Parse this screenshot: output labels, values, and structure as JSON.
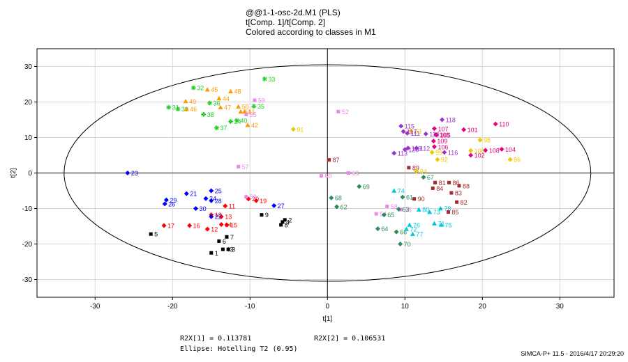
{
  "title": {
    "line1": "@@1-1-osc-2d.M1 (PLS)",
    "line2": "t[Comp. 1]/t[Comp. 2]",
    "line3": "Colored according to classes in M1"
  },
  "stats": {
    "r2x1": "R2X[1] = 0.113781",
    "r2x2": "R2X[2] = 0.106531",
    "ellipse": "Ellipse: Hotelling T2 (0.95)"
  },
  "footer": "SIMCA-P+ 11.5 - 2016/4/17 20:29:20",
  "chart_data": {
    "type": "scatter",
    "xlabel": "t[1]",
    "ylabel": "t[2]",
    "xlim": [
      -37.5,
      37
    ],
    "ylim": [
      -35,
      35
    ],
    "xticks": [
      -30,
      -20,
      -10,
      0,
      10,
      20,
      30
    ],
    "yticks": [
      -30,
      -20,
      -10,
      0,
      10,
      20,
      30
    ],
    "grid": true,
    "ellipse": {
      "cx": 0,
      "cy": 0,
      "rx": 34,
      "ry": 30.5
    },
    "colors": {
      "black": "#000000",
      "red": "#ff0000",
      "blue": "#0000ff",
      "green": "#22cc22",
      "orange": "#ff9900",
      "pink": "#ee88ee",
      "darkred": "#a52a2a",
      "darkgreen": "#2e8b57",
      "cyan": "#00c8d8",
      "purple": "#9933cc",
      "magenta": "#e6007e",
      "yellow": "#f0c800"
    },
    "points": [
      {
        "id": "1",
        "x": -15,
        "y": -22.5,
        "c": "black",
        "m": "square"
      },
      {
        "id": "2",
        "x": -5.5,
        "y": -13.2,
        "c": "black",
        "m": "square"
      },
      {
        "id": "3",
        "x": -12.8,
        "y": -21.5,
        "c": "black",
        "m": "square"
      },
      {
        "id": "4",
        "x": -5.8,
        "y": -13.8,
        "c": "black",
        "m": "square"
      },
      {
        "id": "5",
        "x": -22.8,
        "y": -17.2,
        "c": "black",
        "m": "square"
      },
      {
        "id": "6",
        "x": -14,
        "y": -19.2,
        "c": "black",
        "m": "square"
      },
      {
        "id": "7",
        "x": -13,
        "y": -18,
        "c": "black",
        "m": "square"
      },
      {
        "id": "8",
        "x": -6,
        "y": -14.6,
        "c": "black",
        "m": "square"
      },
      {
        "id": "9",
        "x": -8.5,
        "y": -11.8,
        "c": "black",
        "m": "square"
      },
      {
        "id": "43",
        "x": -13.5,
        "y": -21.5,
        "c": "black",
        "m": "square"
      },
      {
        "id": "11",
        "x": -13.2,
        "y": -9.3,
        "c": "red",
        "m": "diamond"
      },
      {
        "id": "12",
        "x": -15.5,
        "y": -15.8,
        "c": "red",
        "m": "diamond"
      },
      {
        "id": "13",
        "x": -13.7,
        "y": -12.3,
        "c": "red",
        "m": "diamond"
      },
      {
        "id": "14",
        "x": -13.7,
        "y": -14.5,
        "c": "red",
        "m": "diamond"
      },
      {
        "id": "15",
        "x": -13,
        "y": -14.6,
        "c": "red",
        "m": "diamond"
      },
      {
        "id": "16",
        "x": -17.8,
        "y": -14.8,
        "c": "red",
        "m": "diamond"
      },
      {
        "id": "17",
        "x": -21.1,
        "y": -14.8,
        "c": "red",
        "m": "diamond"
      },
      {
        "id": "18",
        "x": -15,
        "y": -11.8,
        "c": "red",
        "m": "diamond"
      },
      {
        "id": "19",
        "x": -9.2,
        "y": -7.8,
        "c": "red",
        "m": "diamond"
      },
      {
        "id": "20",
        "x": -10.2,
        "y": -7.3,
        "c": "red",
        "m": "diamond"
      },
      {
        "id": "21",
        "x": -18.2,
        "y": -5.8,
        "c": "blue",
        "m": "diamond"
      },
      {
        "id": "22",
        "x": -15,
        "y": -12.3,
        "c": "blue",
        "m": "diamond"
      },
      {
        "id": "23",
        "x": -25.8,
        "y": 0,
        "c": "blue",
        "m": "diamond"
      },
      {
        "id": "25",
        "x": -15,
        "y": -5,
        "c": "blue",
        "m": "diamond"
      },
      {
        "id": "26",
        "x": -21,
        "y": -8.7,
        "c": "blue",
        "m": "diamond"
      },
      {
        "id": "27",
        "x": -6.9,
        "y": -9.2,
        "c": "blue",
        "m": "diamond"
      },
      {
        "id": "28",
        "x": -15,
        "y": -7.8,
        "c": "blue",
        "m": "diamond"
      },
      {
        "id": "29",
        "x": -20.8,
        "y": -7.6,
        "c": "blue",
        "m": "diamond"
      },
      {
        "id": "30",
        "x": -17,
        "y": -10,
        "c": "blue",
        "m": "diamond"
      },
      {
        "id": "24",
        "x": -15.7,
        "y": -7.2,
        "c": "blue",
        "m": "diamond"
      },
      {
        "id": "31",
        "x": -20.5,
        "y": 18.5,
        "c": "green",
        "m": "star"
      },
      {
        "id": "32",
        "x": -17.3,
        "y": 24,
        "c": "green",
        "m": "star"
      },
      {
        "id": "33",
        "x": -8.1,
        "y": 26.5,
        "c": "green",
        "m": "star"
      },
      {
        "id": "34",
        "x": -12.5,
        "y": 14.5,
        "c": "green",
        "m": "star"
      },
      {
        "id": "35",
        "x": -9.5,
        "y": 18.8,
        "c": "green",
        "m": "star"
      },
      {
        "id": "36",
        "x": -15.2,
        "y": 19.7,
        "c": "green",
        "m": "star"
      },
      {
        "id": "37",
        "x": -14.3,
        "y": 12.7,
        "c": "green",
        "m": "star"
      },
      {
        "id": "38",
        "x": -16,
        "y": 16.5,
        "c": "green",
        "m": "star"
      },
      {
        "id": "39",
        "x": -19.3,
        "y": 18,
        "c": "green",
        "m": "star"
      },
      {
        "id": "40",
        "x": -11.7,
        "y": 14.8,
        "c": "green",
        "m": "star"
      },
      {
        "id": "41",
        "x": -10.7,
        "y": 17.3,
        "c": "orange",
        "m": "triangle"
      },
      {
        "id": "42",
        "x": -10.3,
        "y": 13.5,
        "c": "orange",
        "m": "triangle"
      },
      {
        "id": "44",
        "x": -14,
        "y": 21,
        "c": "orange",
        "m": "triangle"
      },
      {
        "id": "45",
        "x": -15.5,
        "y": 23.5,
        "c": "orange",
        "m": "triangle"
      },
      {
        "id": "46",
        "x": -18.2,
        "y": 18,
        "c": "orange",
        "m": "triangle"
      },
      {
        "id": "47",
        "x": -13.8,
        "y": 18.5,
        "c": "orange",
        "m": "triangle"
      },
      {
        "id": "48",
        "x": -12.5,
        "y": 23,
        "c": "orange",
        "m": "triangle"
      },
      {
        "id": "49",
        "x": -18.3,
        "y": 20.2,
        "c": "orange",
        "m": "triangle"
      },
      {
        "id": "50",
        "x": -11.5,
        "y": 18.7,
        "c": "orange",
        "m": "triangle"
      },
      {
        "id": "51",
        "x": -11.2,
        "y": 17.3,
        "c": "orange",
        "m": "triangle"
      },
      {
        "id": "52",
        "x": 1.4,
        "y": 17.3,
        "c": "pink",
        "m": "square"
      },
      {
        "id": "53",
        "x": -10.5,
        "y": -6.7,
        "c": "pink",
        "m": "square"
      },
      {
        "id": "54",
        "x": 6.3,
        "y": -11.5,
        "c": "pink",
        "m": "square"
      },
      {
        "id": "55",
        "x": -10.5,
        "y": 16.5,
        "c": "pink",
        "m": "square"
      },
      {
        "id": "56",
        "x": 9.5,
        "y": -10.3,
        "c": "pink",
        "m": "square"
      },
      {
        "id": "57",
        "x": -11.5,
        "y": 1.8,
        "c": "pink",
        "m": "square"
      },
      {
        "id": "58",
        "x": 7.7,
        "y": -9.4,
        "c": "pink",
        "m": "square"
      },
      {
        "id": "59",
        "x": -9.4,
        "y": 20.5,
        "c": "pink",
        "m": "square"
      },
      {
        "id": "60",
        "x": -0.8,
        "y": -0.8,
        "c": "pink",
        "m": "square"
      },
      {
        "id": "63",
        "x": 2.7,
        "y": 0,
        "c": "pink",
        "m": "square"
      },
      {
        "id": "61",
        "x": 9.7,
        "y": -6.8,
        "c": "darkgreen",
        "m": "diamond"
      },
      {
        "id": "62",
        "x": 1.2,
        "y": -9.5,
        "c": "darkgreen",
        "m": "diamond"
      },
      {
        "id": "64",
        "x": 6.5,
        "y": -15.7,
        "c": "darkgreen",
        "m": "diamond"
      },
      {
        "id": "65",
        "x": 7.3,
        "y": -11.8,
        "c": "darkgreen",
        "m": "diamond"
      },
      {
        "id": "66",
        "x": 8.9,
        "y": -16.6,
        "c": "darkgreen",
        "m": "diamond"
      },
      {
        "id": "67",
        "x": 12.4,
        "y": -1.2,
        "c": "darkgreen",
        "m": "diamond"
      },
      {
        "id": "68",
        "x": 0.5,
        "y": -7,
        "c": "darkgreen",
        "m": "diamond"
      },
      {
        "id": "69",
        "x": 4.1,
        "y": -3.8,
        "c": "darkgreen",
        "m": "diamond"
      },
      {
        "id": "70",
        "x": 9.4,
        "y": -20,
        "c": "darkgreen",
        "m": "diamond"
      },
      {
        "id": "63",
        "x": 9.2,
        "y": -10.2,
        "c": "darkgreen",
        "m": "diamond"
      },
      {
        "id": "71",
        "x": 13.8,
        "y": -14.2,
        "c": "cyan",
        "m": "triangle"
      },
      {
        "id": "72",
        "x": 10.2,
        "y": -15.8,
        "c": "cyan",
        "m": "triangle"
      },
      {
        "id": "73",
        "x": 13.2,
        "y": -11,
        "c": "cyan",
        "m": "triangle"
      },
      {
        "id": "74",
        "x": 8.6,
        "y": -5,
        "c": "cyan",
        "m": "triangle"
      },
      {
        "id": "75",
        "x": 14.7,
        "y": -14.6,
        "c": "cyan",
        "m": "triangle"
      },
      {
        "id": "76",
        "x": 10.6,
        "y": -14.6,
        "c": "cyan",
        "m": "triangle"
      },
      {
        "id": "77",
        "x": 11,
        "y": -17.2,
        "c": "cyan",
        "m": "triangle"
      },
      {
        "id": "78",
        "x": 14.6,
        "y": -10,
        "c": "cyan",
        "m": "triangle"
      },
      {
        "id": "80",
        "x": 11.8,
        "y": -10.3,
        "c": "cyan",
        "m": "triangle"
      },
      {
        "id": "81",
        "x": 13.9,
        "y": -2.7,
        "c": "darkred",
        "m": "square"
      },
      {
        "id": "82",
        "x": 16.7,
        "y": -8.2,
        "c": "darkred",
        "m": "square"
      },
      {
        "id": "83",
        "x": 16,
        "y": -5.6,
        "c": "darkred",
        "m": "square"
      },
      {
        "id": "84",
        "x": 13.6,
        "y": -4.3,
        "c": "darkred",
        "m": "square"
      },
      {
        "id": "85",
        "x": 15.6,
        "y": -11,
        "c": "darkred",
        "m": "square"
      },
      {
        "id": "86",
        "x": 15.7,
        "y": -2.7,
        "c": "darkred",
        "m": "square"
      },
      {
        "id": "87",
        "x": 0.2,
        "y": 3.7,
        "c": "darkred",
        "m": "square"
      },
      {
        "id": "88",
        "x": 17,
        "y": -3.6,
        "c": "darkred",
        "m": "square"
      },
      {
        "id": "89",
        "x": 10.5,
        "y": 1.5,
        "c": "darkred",
        "m": "square"
      },
      {
        "id": "90",
        "x": 11.2,
        "y": -7.3,
        "c": "darkred",
        "m": "square"
      },
      {
        "id": "91",
        "x": -4.4,
        "y": 12.3,
        "c": "yellow",
        "m": "diamond"
      },
      {
        "id": "92",
        "x": 14.2,
        "y": 3.8,
        "c": "yellow",
        "m": "diamond"
      },
      {
        "id": "93",
        "x": 10.8,
        "y": 11.8,
        "c": "yellow",
        "m": "diamond"
      },
      {
        "id": "94",
        "x": 11.5,
        "y": 0.5,
        "c": "yellow",
        "m": "diamond"
      },
      {
        "id": "96",
        "x": 23.6,
        "y": 3.8,
        "c": "yellow",
        "m": "diamond"
      },
      {
        "id": "98",
        "x": 19.7,
        "y": 9.3,
        "c": "yellow",
        "m": "diamond"
      },
      {
        "id": "99",
        "x": 13.5,
        "y": 5.8,
        "c": "yellow",
        "m": "diamond"
      },
      {
        "id": "100",
        "x": 18.5,
        "y": 6.3,
        "c": "yellow",
        "m": "diamond"
      },
      {
        "id": "101",
        "x": 17.6,
        "y": 12.2,
        "c": "magenta",
        "m": "diamond"
      },
      {
        "id": "102",
        "x": 18.5,
        "y": 5,
        "c": "magenta",
        "m": "diamond"
      },
      {
        "id": "103",
        "x": 14,
        "y": 10.8,
        "c": "magenta",
        "m": "diamond"
      },
      {
        "id": "104",
        "x": 22.5,
        "y": 6.7,
        "c": "magenta",
        "m": "diamond"
      },
      {
        "id": "105",
        "x": 14.1,
        "y": 10.7,
        "c": "magenta",
        "m": "diamond"
      },
      {
        "id": "106",
        "x": 13.8,
        "y": 7.4,
        "c": "magenta",
        "m": "diamond"
      },
      {
        "id": "107",
        "x": 13.8,
        "y": 12.5,
        "c": "magenta",
        "m": "diamond"
      },
      {
        "id": "108",
        "x": 20.4,
        "y": 6.4,
        "c": "magenta",
        "m": "diamond"
      },
      {
        "id": "109",
        "x": 13.7,
        "y": 9,
        "c": "magenta",
        "m": "diamond"
      },
      {
        "id": "110",
        "x": 21.7,
        "y": 13.8,
        "c": "magenta",
        "m": "diamond"
      },
      {
        "id": "111",
        "x": 10.3,
        "y": 11.2,
        "c": "purple",
        "m": "diamond"
      },
      {
        "id": "112",
        "x": 11.5,
        "y": 7,
        "c": "purple",
        "m": "diamond"
      },
      {
        "id": "113",
        "x": 8.6,
        "y": 5.6,
        "c": "purple",
        "m": "diamond"
      },
      {
        "id": "114",
        "x": 12.7,
        "y": 11,
        "c": "purple",
        "m": "diamond"
      },
      {
        "id": "115",
        "x": 9.5,
        "y": 13.2,
        "c": "purple",
        "m": "diamond"
      },
      {
        "id": "116",
        "x": 15.1,
        "y": 5.8,
        "c": "purple",
        "m": "diamond"
      },
      {
        "id": "117",
        "x": 9.8,
        "y": 11.7,
        "c": "purple",
        "m": "diamond"
      },
      {
        "id": "118",
        "x": 14.8,
        "y": 15,
        "c": "purple",
        "m": "diamond"
      },
      {
        "id": "119",
        "x": 10.4,
        "y": 7,
        "c": "purple",
        "m": "diamond"
      },
      {
        "id": "120",
        "x": 10,
        "y": 6.6,
        "c": "purple",
        "m": "diamond"
      }
    ]
  }
}
